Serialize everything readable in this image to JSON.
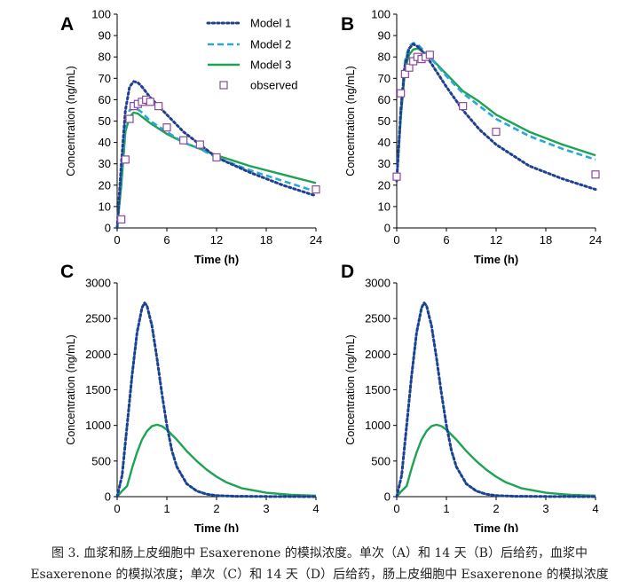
{
  "colors": {
    "model1": "#1f3f8f",
    "model2": "#29a8d8",
    "model3": "#1ea352",
    "observed": "#8c4a9e",
    "axis": "#000000"
  },
  "legend": {
    "items": [
      {
        "key": "model1",
        "label": "Model 1",
        "style": "dotted"
      },
      {
        "key": "model2",
        "label": "Model 2",
        "style": "dashed"
      },
      {
        "key": "model3",
        "label": "Model 3",
        "style": "solid"
      },
      {
        "key": "observed",
        "label": "observed",
        "style": "marker"
      }
    ],
    "position": "top-right of panel A"
  },
  "chart_data": [
    {
      "panel_label": "A",
      "type": "line",
      "xlabel": "Time (h)",
      "ylabel": "Concentration (ng/mL)",
      "xlim": [
        0,
        24
      ],
      "ylim": [
        0,
        100
      ],
      "xticks": [
        0,
        6,
        12,
        18,
        24
      ],
      "yticks": [
        0,
        10,
        20,
        30,
        40,
        50,
        60,
        70,
        80,
        90,
        100
      ],
      "grid": false,
      "series": [
        {
          "key": "model1",
          "name": "Model 1",
          "x": [
            0,
            0.5,
            1,
            1.5,
            2,
            2.5,
            3,
            4,
            6,
            8,
            10,
            12,
            16,
            20,
            24
          ],
          "y": [
            0,
            30,
            55,
            66,
            68.5,
            68,
            66,
            61,
            53,
            45,
            39,
            33,
            26,
            20,
            15
          ]
        },
        {
          "key": "model2",
          "name": "Model 2",
          "x": [
            0,
            0.5,
            1,
            1.5,
            2,
            2.5,
            3,
            4,
            6,
            8,
            10,
            12,
            16,
            20,
            24
          ],
          "y": [
            0,
            25,
            48,
            55,
            56,
            55.5,
            54,
            50,
            45,
            40,
            37,
            33,
            27,
            22,
            17
          ]
        },
        {
          "key": "model3",
          "name": "Model 3",
          "x": [
            0,
            0.5,
            1,
            1.5,
            2,
            2.5,
            3,
            4,
            6,
            8,
            10,
            12,
            16,
            20,
            24
          ],
          "y": [
            0,
            20,
            45,
            52,
            54,
            53.5,
            52,
            49,
            44,
            40,
            37,
            34,
            29,
            25,
            21
          ]
        }
      ],
      "observed": {
        "key": "observed",
        "name": "observed",
        "x": [
          0.5,
          1,
          1.5,
          2,
          2.5,
          3,
          3.5,
          4,
          5,
          6,
          8,
          10,
          12,
          24
        ],
        "y": [
          4,
          32,
          51,
          57,
          58,
          59,
          60,
          59,
          57,
          47,
          41,
          39,
          33,
          18
        ]
      }
    },
    {
      "panel_label": "B",
      "type": "line",
      "xlabel": "Time (h)",
      "ylabel": "Concentration (ng/mL)",
      "xlim": [
        0,
        24
      ],
      "ylim": [
        0,
        100
      ],
      "xticks": [
        0,
        6,
        12,
        18,
        24
      ],
      "yticks": [
        0,
        10,
        20,
        30,
        40,
        50,
        60,
        70,
        80,
        90,
        100
      ],
      "grid": false,
      "series": [
        {
          "key": "model1",
          "name": "Model 1",
          "x": [
            0,
            0.5,
            1,
            1.5,
            2,
            2.5,
            3,
            4,
            6,
            8,
            10,
            12,
            16,
            20,
            24
          ],
          "y": [
            22,
            55,
            76,
            84,
            86,
            85,
            83,
            78,
            66,
            55,
            46,
            39,
            29,
            23,
            18
          ]
        },
        {
          "key": "model2",
          "name": "Model 2",
          "x": [
            0,
            0.5,
            1,
            1.5,
            2,
            2.5,
            3,
            4,
            6,
            8,
            10,
            12,
            16,
            20,
            24
          ],
          "y": [
            22,
            57,
            78,
            85,
            86.5,
            86,
            84,
            80,
            71,
            63,
            57,
            51,
            43,
            37,
            32
          ]
        },
        {
          "key": "model3",
          "name": "Model 3",
          "x": [
            0,
            0.5,
            1,
            1.5,
            2,
            2.5,
            3,
            4,
            6,
            8,
            10,
            12,
            16,
            20,
            24
          ],
          "y": [
            22,
            52,
            74,
            81,
            83.5,
            84,
            83,
            80,
            72,
            64,
            59,
            53,
            45,
            39,
            34
          ]
        }
      ],
      "observed": {
        "key": "observed",
        "name": "observed",
        "x": [
          0,
          0.5,
          1,
          1.5,
          2,
          2.5,
          3,
          3.5,
          4,
          8,
          12,
          24
        ],
        "y": [
          24,
          63,
          72,
          75,
          78,
          80,
          79,
          80,
          81,
          57,
          45,
          25
        ]
      }
    },
    {
      "panel_label": "C",
      "type": "line",
      "xlabel": "Time (h)",
      "ylabel": "Concentration (ng/mL)",
      "xlim": [
        0,
        4
      ],
      "ylim": [
        0,
        3000
      ],
      "xticks": [
        0,
        1,
        2,
        3,
        4
      ],
      "yticks": [
        0,
        500,
        1000,
        1500,
        2000,
        2500,
        3000
      ],
      "grid": false,
      "series": [
        {
          "key": "model1",
          "name": "Model 1",
          "x": [
            0,
            0.1,
            0.2,
            0.3,
            0.4,
            0.5,
            0.55,
            0.6,
            0.7,
            0.8,
            0.9,
            1.0,
            1.1,
            1.2,
            1.4,
            1.6,
            1.8,
            2.0,
            2.4,
            3.0,
            4.0
          ],
          "y": [
            0,
            300,
            1000,
            1700,
            2300,
            2650,
            2720,
            2680,
            2400,
            1950,
            1450,
            1000,
            650,
            420,
            180,
            80,
            35,
            15,
            5,
            2,
            0
          ]
        },
        {
          "key": "model2",
          "name": "Model 2",
          "x": [
            0,
            0.1,
            0.2,
            0.3,
            0.4,
            0.5,
            0.55,
            0.6,
            0.7,
            0.8,
            0.9,
            1.0,
            1.1,
            1.2,
            1.4,
            1.6,
            1.8,
            2.0,
            2.4,
            3.0,
            4.0
          ],
          "y": [
            0,
            300,
            1000,
            1700,
            2300,
            2650,
            2720,
            2680,
            2400,
            1950,
            1450,
            1000,
            650,
            420,
            180,
            80,
            35,
            15,
            5,
            2,
            0
          ]
        },
        {
          "key": "model3",
          "name": "Model 3",
          "x": [
            0,
            0.1,
            0.2,
            0.3,
            0.4,
            0.5,
            0.6,
            0.7,
            0.8,
            0.9,
            1.0,
            1.2,
            1.4,
            1.6,
            1.8,
            2.0,
            2.2,
            2.5,
            3.0,
            3.5,
            4.0
          ],
          "y": [
            0,
            80,
            150,
            400,
            620,
            800,
            920,
            990,
            1010,
            990,
            940,
            800,
            640,
            500,
            380,
            280,
            200,
            120,
            55,
            25,
            12
          ]
        }
      ]
    },
    {
      "panel_label": "D",
      "type": "line",
      "xlabel": "Time (h)",
      "ylabel": "Concentration (ng/mL)",
      "xlim": [
        0,
        4
      ],
      "ylim": [
        0,
        3000
      ],
      "xticks": [
        0,
        1,
        2,
        3,
        4
      ],
      "yticks": [
        0,
        500,
        1000,
        1500,
        2000,
        2500,
        3000
      ],
      "grid": false,
      "series": [
        {
          "key": "model1",
          "name": "Model 1",
          "x": [
            0,
            0.1,
            0.2,
            0.3,
            0.4,
            0.5,
            0.55,
            0.6,
            0.7,
            0.8,
            0.9,
            1.0,
            1.1,
            1.2,
            1.4,
            1.6,
            1.8,
            2.0,
            2.4,
            3.0,
            4.0
          ],
          "y": [
            0,
            300,
            1000,
            1700,
            2300,
            2650,
            2720,
            2680,
            2400,
            1950,
            1450,
            1000,
            650,
            420,
            180,
            80,
            35,
            15,
            5,
            2,
            0
          ]
        },
        {
          "key": "model2",
          "name": "Model 2",
          "x": [
            0,
            0.1,
            0.2,
            0.3,
            0.4,
            0.5,
            0.55,
            0.6,
            0.7,
            0.8,
            0.9,
            1.0,
            1.1,
            1.2,
            1.4,
            1.6,
            1.8,
            2.0,
            2.4,
            3.0,
            4.0
          ],
          "y": [
            0,
            300,
            1000,
            1700,
            2300,
            2650,
            2720,
            2680,
            2400,
            1950,
            1450,
            1000,
            650,
            420,
            180,
            80,
            35,
            15,
            5,
            2,
            0
          ]
        },
        {
          "key": "model3",
          "name": "Model 3",
          "x": [
            0,
            0.1,
            0.2,
            0.3,
            0.4,
            0.5,
            0.6,
            0.7,
            0.8,
            0.9,
            1.0,
            1.2,
            1.4,
            1.6,
            1.8,
            2.0,
            2.2,
            2.5,
            3.0,
            3.5,
            4.0
          ],
          "y": [
            0,
            80,
            150,
            400,
            620,
            800,
            920,
            990,
            1010,
            990,
            940,
            800,
            640,
            500,
            380,
            280,
            200,
            120,
            55,
            25,
            12
          ]
        }
      ]
    }
  ],
  "caption": {
    "line1": "图 3. 血浆和肠上皮细胞中 Esaxerenone 的模拟浓度。单次（A）和 14 天（B）后给药，血浆中",
    "line2": "Esaxerenone 的模拟浓度；单次（C）和 14 天（D）后给药，肠上皮细胞中 Esaxerenone 的模拟浓度"
  }
}
